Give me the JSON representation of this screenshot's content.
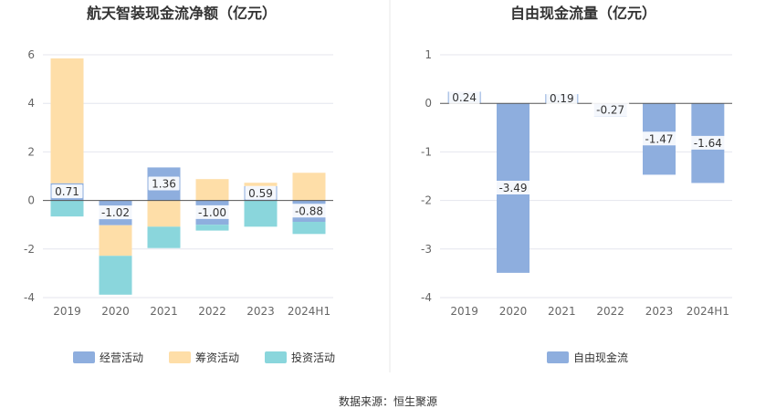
{
  "source_text": "数据来源：恒生聚源",
  "colors": {
    "operating": "#8eaede",
    "financing": "#fedea8",
    "investing": "#8ad6dc",
    "fcf": "#8eaede",
    "grid": "#e4e6ee",
    "axis_text": "#666666",
    "title_text": "#333333",
    "divider": "#e8e8e8"
  },
  "chart_data": [
    {
      "type": "bar",
      "stacked": true,
      "title": "航天智装现金流净额（亿元）",
      "categories": [
        "2019",
        "2020",
        "2021",
        "2022",
        "2023",
        "2024H1"
      ],
      "ylim": [
        -4,
        6
      ],
      "yticks": [
        -4,
        -2,
        0,
        2,
        4,
        6
      ],
      "series": [
        {
          "name": "经营活动",
          "color_key": "operating",
          "values": [
            0.71,
            -1.02,
            1.36,
            -1.0,
            0.59,
            -0.88
          ],
          "labels": [
            "0.71",
            "-1.02",
            "1.36",
            "-1.00",
            "0.59",
            "-0.88"
          ]
        },
        {
          "name": "筹资活动",
          "color_key": "financing",
          "values": [
            5.14,
            -1.26,
            -1.08,
            0.88,
            0.14,
            1.14
          ]
        },
        {
          "name": "投资活动",
          "color_key": "investing",
          "values": [
            -0.66,
            -1.6,
            -0.88,
            -0.24,
            -1.08,
            -0.5
          ]
        }
      ],
      "legend_position": "bottom-center"
    },
    {
      "type": "bar",
      "title": "自由现金流量（亿元）",
      "categories": [
        "2019",
        "2020",
        "2021",
        "2022",
        "2023",
        "2024H1"
      ],
      "ylim": [
        -4,
        1
      ],
      "yticks": [
        -4,
        -3,
        -2,
        -1,
        0,
        1
      ],
      "series": [
        {
          "name": "自由现金流",
          "color_key": "fcf",
          "values": [
            0.24,
            -3.49,
            0.19,
            -0.27,
            -1.47,
            -1.64
          ],
          "labels": [
            "0.24",
            "-3.49",
            "0.19",
            "-0.27",
            "-1.47",
            "-1.64"
          ]
        }
      ],
      "legend_position": "bottom-center"
    }
  ]
}
